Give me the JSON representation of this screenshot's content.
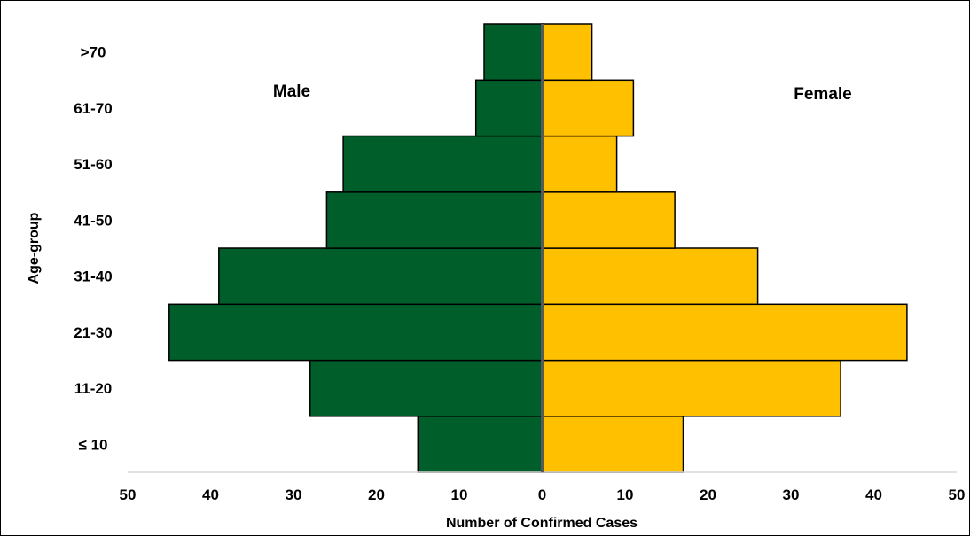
{
  "chart_data": {
    "type": "bar",
    "orientation": "horizontal",
    "layout": "population-pyramid",
    "categories": [
      "≤ 10",
      "11-20",
      "21-30",
      "31-40",
      "41-50",
      "51-60",
      "61-70",
      ">70"
    ],
    "series": [
      {
        "name": "Male",
        "values": [
          15,
          28,
          45,
          39,
          26,
          24,
          8,
          7
        ],
        "color": "#005e2b",
        "side": "left"
      },
      {
        "name": "Female",
        "values": [
          17,
          36,
          44,
          26,
          16,
          9,
          11,
          6
        ],
        "color": "#ffc000",
        "side": "right"
      }
    ],
    "xlabel": "Number of Confirmed Cases",
    "ylabel": "Age-group",
    "xlim": [
      -50,
      50
    ],
    "x_ticks": [
      -50,
      -40,
      -30,
      -20,
      -10,
      0,
      10,
      20,
      30,
      40,
      50
    ],
    "x_tick_labels": [
      "50",
      "40",
      "30",
      "20",
      "10",
      "0",
      "10",
      "20",
      "30",
      "40",
      "50"
    ],
    "grid": false,
    "legend": "none",
    "center_line_color": "#595959",
    "axis_color": "#d9d9d9"
  }
}
